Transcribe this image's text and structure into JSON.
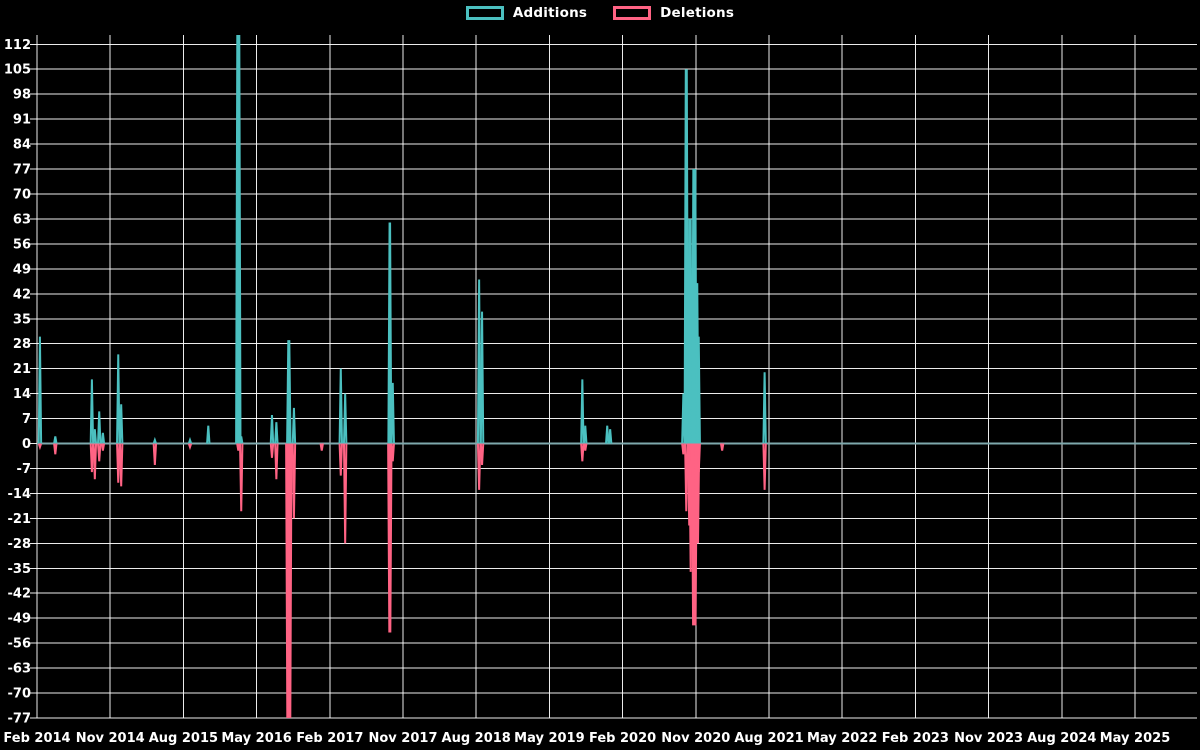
{
  "page": {
    "background": "#000000",
    "text_color": "#ffffff"
  },
  "chart_data": {
    "type": "line",
    "title": "",
    "legend_position": "top",
    "grid": true,
    "series": [
      {
        "name": "Additions",
        "color": "#4bc0c0"
      },
      {
        "name": "Deletions",
        "color": "#ff6384"
      }
    ],
    "baseline_color": "#7ea9ad",
    "grid_color": "rgba(255,255,255,0.92)",
    "x_axis": {
      "labels": [
        "Feb 2014",
        "Nov 2014",
        "Aug 2015",
        "May 2016",
        "Feb 2017",
        "Nov 2017",
        "Aug 2018",
        "May 2019",
        "Feb 2020",
        "Nov 2020",
        "Aug 2021",
        "May 2022",
        "Feb 2023",
        "Nov 2023",
        "Aug 2024",
        "May 2025"
      ],
      "months_per_gridline": 9,
      "note": "spike t values are in gridline units: 0 = Feb 2014, 1 = Nov 2014 (9 months each)"
    },
    "y_axis": {
      "ticks": [
        112,
        105,
        98,
        91,
        84,
        77,
        70,
        63,
        56,
        49,
        42,
        35,
        28,
        21,
        14,
        7,
        0,
        -7,
        -14,
        -21,
        -28,
        -35,
        -42,
        -49,
        -56,
        -63,
        -70,
        -77
      ],
      "step": 7,
      "render_max": 114.6,
      "render_min": -77
    },
    "spikes": [
      {
        "t": 0.04,
        "a": 30,
        "d": -1
      },
      {
        "t": 0.25,
        "a": 2,
        "d": -3
      },
      {
        "t": 0.75,
        "a": 18,
        "d": -8
      },
      {
        "t": 0.79,
        "a": 4,
        "d": -10
      },
      {
        "t": 0.85,
        "a": 9,
        "d": -5
      },
      {
        "t": 0.9,
        "a": 3,
        "d": -2
      },
      {
        "t": 1.11,
        "a": 25,
        "d": -11
      },
      {
        "t": 1.15,
        "a": 11,
        "d": -12
      },
      {
        "t": 1.61,
        "a": 1,
        "d": -6
      },
      {
        "t": 2.09,
        "a": 1,
        "d": -1
      },
      {
        "t": 2.34,
        "a": 5,
        "d": 0
      },
      {
        "t": 2.75,
        "a": 115,
        "d": -2,
        "wa": 4,
        "a_clipped_at_top": true
      },
      {
        "t": 2.79,
        "a": 2,
        "d": -19
      },
      {
        "t": 3.21,
        "a": 8,
        "d": -4
      },
      {
        "t": 3.27,
        "a": 6,
        "d": -10
      },
      {
        "t": 3.44,
        "a": 29,
        "d": -78,
        "wa": 3,
        "wd": 5
      },
      {
        "t": 3.51,
        "a": 10,
        "d": -21
      },
      {
        "t": 3.89,
        "a": 0,
        "d": -2
      },
      {
        "t": 4.15,
        "a": 21,
        "d": -9
      },
      {
        "t": 4.21,
        "a": 14,
        "d": -28
      },
      {
        "t": 4.82,
        "a": 62,
        "d": -53,
        "wa": 2.5,
        "wd": 3
      },
      {
        "t": 4.86,
        "a": 17,
        "d": -5
      },
      {
        "t": 6.04,
        "a": 46,
        "d": -13
      },
      {
        "t": 6.08,
        "a": 37,
        "d": -6
      },
      {
        "t": 7.45,
        "a": 18,
        "d": -5
      },
      {
        "t": 7.49,
        "a": 5,
        "d": -2
      },
      {
        "t": 7.79,
        "a": 5,
        "d": 0
      },
      {
        "t": 7.83,
        "a": 4,
        "d": 0
      },
      {
        "t": 8.83,
        "a": 14,
        "d": -3
      },
      {
        "t": 8.87,
        "a": 105,
        "d": -19,
        "wa": 3
      },
      {
        "t": 8.91,
        "a": 63,
        "d": -23
      },
      {
        "t": 8.93,
        "a": 63,
        "d": -36
      },
      {
        "t": 8.98,
        "a": 77,
        "d": -51,
        "wa": 4,
        "wd": 4.5
      },
      {
        "t": 9.02,
        "a": 45,
        "d": -28,
        "wd": 3.5
      },
      {
        "t": 9.04,
        "a": 30,
        "d": -8
      },
      {
        "t": 9.36,
        "a": 0,
        "d": -2
      },
      {
        "t": 9.94,
        "a": 20,
        "d": -13
      }
    ]
  }
}
